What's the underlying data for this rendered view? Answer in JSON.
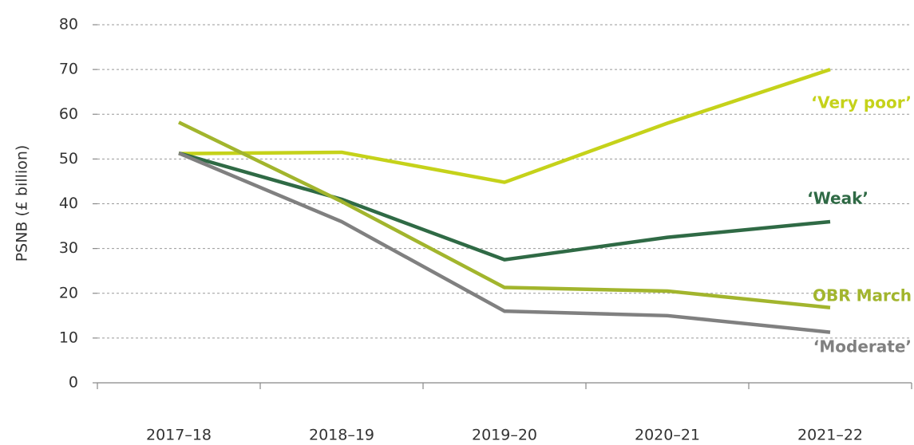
{
  "chart_data": {
    "type": "line",
    "y_label": "PSNB (£ billion)",
    "categories": [
      "2017–18",
      "2018–19",
      "2019–20",
      "2020–21",
      "2021–22"
    ],
    "series": [
      {
        "name": "‘Very poor’",
        "color": "#c5d21a",
        "values": [
          51.2,
          51.5,
          44.8,
          58,
          70
        ]
      },
      {
        "name": "‘Weak’",
        "color": "#2f6a45",
        "values": [
          51.3,
          41,
          27.5,
          32.5,
          36
        ]
      },
      {
        "name": "OBR March",
        "color": "#a2b52d",
        "values": [
          58.2,
          40.5,
          21.3,
          20.5,
          16.8
        ]
      },
      {
        "name": "‘Moderate’",
        "color": "#808080",
        "values": [
          51.3,
          36,
          16,
          15,
          11.3
        ]
      }
    ],
    "ylim": [
      0,
      80
    ],
    "yticks": [
      0,
      10,
      20,
      30,
      40,
      50,
      60,
      70,
      80
    ],
    "grid": true
  }
}
